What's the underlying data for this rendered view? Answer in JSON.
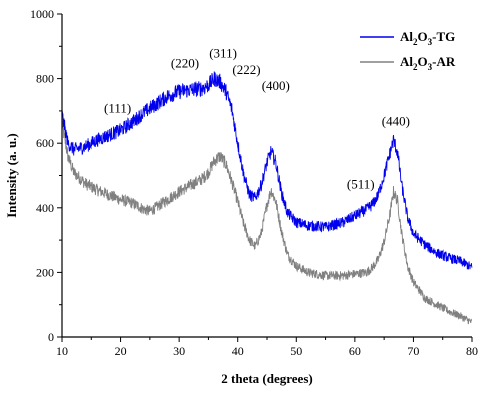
{
  "chart_data": {
    "type": "line",
    "xlabel": "2 theta (degrees)",
    "ylabel": "Intensity (a. u.)",
    "xlim": [
      10,
      80
    ],
    "ylim": [
      0,
      1000
    ],
    "x_ticks": [
      10,
      20,
      30,
      40,
      50,
      60,
      70,
      80
    ],
    "y_ticks": [
      0,
      200,
      400,
      600,
      800,
      1000
    ],
    "grid": false,
    "legend_position": "top-right",
    "series": [
      {
        "name": "Al2O3-TG",
        "legend_label": {
          "base1": "Al",
          "sub1": "2",
          "base2": "O",
          "sub2": "3",
          "tail": "-TG"
        },
        "color": "#0000ee",
        "x": [
          10,
          11,
          12,
          14,
          16,
          18,
          20,
          22,
          24,
          26,
          28,
          30,
          32,
          34,
          35,
          36,
          37,
          38,
          39,
          40,
          41,
          42,
          43,
          44,
          45,
          45.7,
          46.5,
          47.5,
          48.5,
          50,
          52,
          55,
          58,
          60,
          62,
          63,
          64,
          65,
          66,
          66.6,
          67.3,
          68,
          69,
          70,
          72,
          74,
          76,
          78,
          80
        ],
        "y": [
          690,
          600,
          580,
          590,
          610,
          625,
          640,
          665,
          695,
          720,
          745,
          760,
          765,
          770,
          780,
          800,
          790,
          760,
          705,
          600,
          505,
          440,
          430,
          470,
          540,
          575,
          540,
          445,
          385,
          355,
          345,
          340,
          355,
          375,
          395,
          410,
          440,
          500,
          570,
          610,
          570,
          470,
          370,
          320,
          285,
          260,
          245,
          235,
          215
        ]
      },
      {
        "name": "Al2O3-AR",
        "legend_label": {
          "base1": "Al",
          "sub1": "2",
          "base2": "O",
          "sub2": "3",
          "tail": "-AR"
        },
        "color": "#808080",
        "x": [
          10,
          11,
          12,
          14,
          16,
          18,
          20,
          22,
          24,
          25,
          26,
          28,
          30,
          32,
          34,
          35,
          36,
          37,
          38,
          39,
          40,
          41,
          42,
          43,
          44,
          45,
          45.7,
          46.5,
          47.5,
          48.5,
          50,
          52,
          55,
          58,
          60,
          62,
          63,
          64,
          65,
          66,
          66.6,
          67.3,
          68,
          69,
          70,
          72,
          74,
          76,
          78,
          80
        ],
        "y": [
          660,
          560,
          510,
          475,
          455,
          440,
          425,
          415,
          395,
          390,
          400,
          425,
          450,
          470,
          490,
          510,
          545,
          560,
          535,
          480,
          420,
          350,
          300,
          280,
          320,
          410,
          455,
          420,
          325,
          255,
          220,
          200,
          190,
          190,
          195,
          200,
          215,
          240,
          295,
          380,
          450,
          420,
          320,
          220,
          170,
          120,
          100,
          80,
          65,
          45
        ]
      }
    ],
    "annotations": [
      {
        "text": "(111)",
        "x": 19.5,
        "y": 695
      },
      {
        "text": "(220)",
        "x": 31,
        "y": 835
      },
      {
        "text": "(311)",
        "x": 37.5,
        "y": 865
      },
      {
        "text": "(222)",
        "x": 41.5,
        "y": 815
      },
      {
        "text": "(400)",
        "x": 46.5,
        "y": 765
      },
      {
        "text": "(511)",
        "x": 61,
        "y": 460
      },
      {
        "text": "(440)",
        "x": 67,
        "y": 655
      }
    ]
  }
}
